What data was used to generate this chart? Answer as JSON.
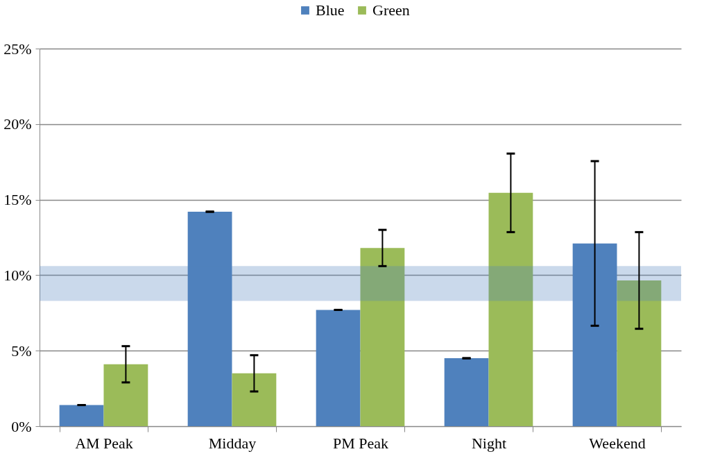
{
  "chart_data": {
    "type": "bar",
    "categories": [
      "AM Peak",
      "Midday",
      "PM Peak",
      "Night",
      "Weekend"
    ],
    "series": [
      {
        "name": "Blue",
        "color": "#4f81bd",
        "values": [
          1.4,
          14.2,
          7.7,
          4.5,
          12.1
        ],
        "errors": [
          0,
          0,
          0,
          0,
          5.45
        ]
      },
      {
        "name": "Green",
        "color": "#9bbb59",
        "values": [
          4.1,
          3.5,
          11.8,
          15.45,
          9.65
        ],
        "errors": [
          1.2,
          1.2,
          1.2,
          2.6,
          3.2
        ]
      }
    ],
    "ylim": [
      0,
      25
    ],
    "yticks": [
      {
        "value": 0,
        "label": "0%"
      },
      {
        "value": 5,
        "label": "5%"
      },
      {
        "value": 10,
        "label": "10%"
      },
      {
        "value": 15,
        "label": "15%"
      },
      {
        "value": 20,
        "label": "20%"
      },
      {
        "value": 25,
        "label": "25%"
      }
    ],
    "bands": [
      {
        "axis": "y",
        "from": 8.3,
        "to": 10.6,
        "color": "#4f81bd"
      }
    ],
    "grid": "y",
    "legend": "top"
  }
}
